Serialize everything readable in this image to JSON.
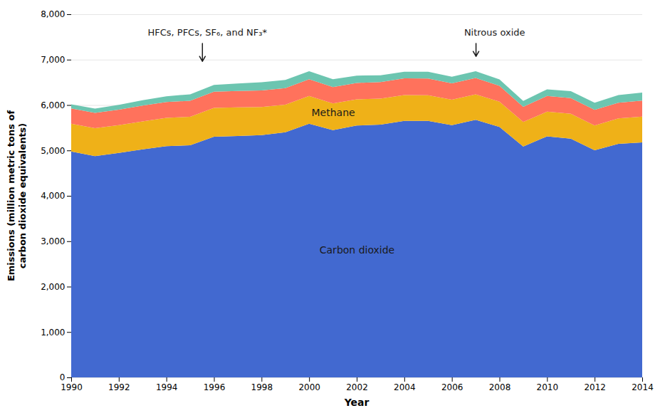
{
  "chart_data": {
    "type": "area",
    "stacked": true,
    "xlabel": "Year",
    "ylabel": "Emissions (million metric tons of\ncarbon dioxide equivalents)",
    "x": [
      1990,
      1991,
      1992,
      1993,
      1994,
      1995,
      1996,
      1997,
      1998,
      1999,
      2000,
      2001,
      2002,
      2003,
      2004,
      2005,
      2006,
      2007,
      2008,
      2009,
      2010,
      2011,
      2012,
      2013,
      2014
    ],
    "xlim": [
      1990,
      2014
    ],
    "xticks": [
      1990,
      1992,
      1994,
      1996,
      1998,
      2000,
      2002,
      2004,
      2006,
      2008,
      2010,
      2012,
      2014
    ],
    "ylim": [
      0,
      8000
    ],
    "yticks": [
      0,
      {
        "value": 1000,
        "label": "1,000"
      },
      {
        "value": 2000,
        "label": "2,000"
      },
      {
        "value": 3000,
        "label": "3,000"
      },
      {
        "value": 4000,
        "label": "4,000"
      },
      {
        "value": 5000,
        "label": "5,000"
      },
      {
        "value": 6000,
        "label": "6,000"
      },
      {
        "value": 7000,
        "label": "7,000"
      },
      {
        "value": 8000,
        "label": "8,000"
      }
    ],
    "grid": true,
    "series": [
      {
        "name": "Carbon dioxide",
        "label_x": 2002,
        "label_y": 2800,
        "values": [
          4975,
          4876,
          4944,
          5022,
          5094,
          5114,
          5302,
          5319,
          5337,
          5399,
          5590,
          5446,
          5549,
          5570,
          5652,
          5651,
          5556,
          5674,
          5516,
          5085,
          5310,
          5258,
          5003,
          5145,
          5178
        ]
      },
      {
        "name": "Methane",
        "label_x": 2001,
        "label_y": 5830,
        "values": [
          614,
          613,
          614,
          617,
          622,
          628,
          635,
          631,
          618,
          608,
          609,
          590,
          577,
          572,
          569,
          564,
          563,
          563,
          557,
          541,
          544,
          551,
          547,
          559,
          566
        ]
      },
      {
        "name": "Nitrous oxide",
        "label_x": 2006.5,
        "label_y": 7680,
        "arrow_x": 2007.0,
        "arrow_y": 7080,
        "values": [
          335,
          337,
          340,
          349,
          349,
          352,
          357,
          358,
          368,
          366,
          369,
          362,
          362,
          363,
          367,
          369,
          358,
          359,
          349,
          335,
          346,
          342,
          343,
          347,
          354
        ]
      },
      {
        "name": "HFCs, PFCs, SF₆, and NF₃*",
        "label_x": 1993.2,
        "label_y": 7680,
        "arrow_x": 1995.5,
        "arrow_y": 6970,
        "values": [
          93,
          97,
          106,
          117,
          129,
          143,
          151,
          165,
          178,
          178,
          178,
          171,
          161,
          150,
          146,
          148,
          148,
          150,
          143,
          130,
          145,
          155,
          158,
          168,
          176
        ]
      }
    ]
  }
}
